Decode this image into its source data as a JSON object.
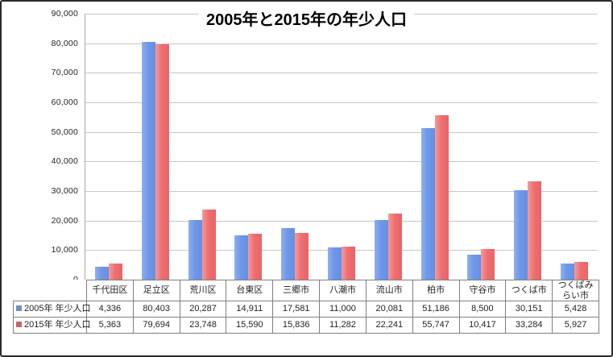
{
  "chart_data": {
    "type": "bar",
    "title": "2005年と2015年の年少人口",
    "categories": [
      "千代田区",
      "足立区",
      "荒川区",
      "台東区",
      "三郷市",
      "八潮市",
      "流山市",
      "柏市",
      "守谷市",
      "つくば市",
      "つくばみらい市"
    ],
    "series": [
      {
        "name": "2005年 年少人口",
        "values": [
          4336,
          80403,
          20287,
          14911,
          17581,
          11000,
          20081,
          51186,
          8500,
          30151,
          5428
        ],
        "values_formatted": [
          "4,336",
          "80,403",
          "20,287",
          "14,911",
          "17,581",
          "11,000",
          "20,081",
          "51,186",
          "8,500",
          "30,151",
          "5,428"
        ],
        "bar_color": "#6e97e8",
        "bar_gradient": [
          "#8fb0ee",
          "#6e97e8",
          "#6490e4"
        ],
        "legend_key_color": "#708fc5"
      },
      {
        "name": "2015年 年少人口",
        "values": [
          5363,
          79694,
          23748,
          15590,
          15836,
          11282,
          22241,
          55747,
          10417,
          33284,
          5927
        ],
        "values_formatted": [
          "5,363",
          "79,694",
          "23,748",
          "15,590",
          "15,836",
          "11,282",
          "22,241",
          "55,747",
          "10,417",
          "33,284",
          "5,927"
        ],
        "bar_color": "#ee6f71",
        "bar_gradient": [
          "#f49a9b",
          "#ee6f71",
          "#e96466"
        ],
        "legend_key_color": "#c66463"
      }
    ],
    "ylim": [
      0,
      90000
    ],
    "ytick_step": 10000,
    "yticks": [
      {
        "value": 90000,
        "label": "90,000"
      },
      {
        "value": 80000,
        "label": "80,000"
      },
      {
        "value": 70000,
        "label": "70,000"
      },
      {
        "value": 60000,
        "label": "60,000"
      },
      {
        "value": 50000,
        "label": "50,000"
      },
      {
        "value": 40000,
        "label": "40,000"
      },
      {
        "value": 30000,
        "label": "30,000"
      },
      {
        "value": 20000,
        "label": "20,000"
      },
      {
        "value": 10000,
        "label": "10,000"
      },
      {
        "value": 0,
        "label": "0"
      }
    ],
    "grid": true,
    "gridline_color": "#c6c6c6",
    "axis_line_color": "#a6a6a6",
    "table_border_color": "#7f7f7f",
    "legend_position": "data-table-left"
  }
}
